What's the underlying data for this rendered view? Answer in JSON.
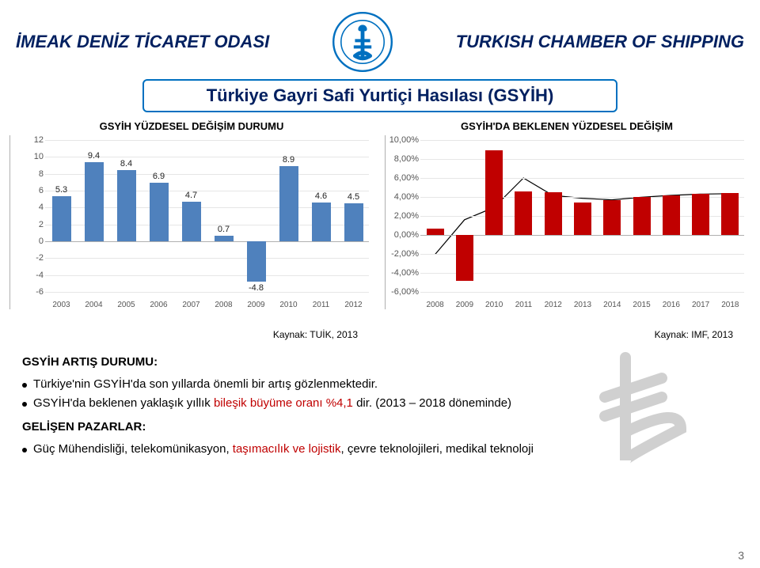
{
  "header": {
    "left": "İMEAK DENİZ TİCARET ODASI",
    "right": "TURKISH CHAMBER OF SHIPPING",
    "logo_ring_text": "DENİZ TİCARET ODASI"
  },
  "title": "Türkiye Gayri Safi Yurtiçi Hasılası (GSYİH)",
  "chart_left": {
    "title": "GSYİH YÜZDESEL DEĞİŞİM DURUMU",
    "type": "bar",
    "categories": [
      "2003",
      "2004",
      "2005",
      "2006",
      "2007",
      "2008",
      "2009",
      "2010",
      "2011",
      "2012"
    ],
    "values": [
      5.3,
      9.4,
      8.4,
      6.9,
      4.7,
      0.7,
      -4.8,
      8.9,
      4.6,
      4.5
    ],
    "labels": [
      "5.3",
      "9.4",
      "8.4",
      "6.9",
      "4.7",
      "0.7",
      "-4.8",
      "8.9",
      "4.6",
      "4.5"
    ],
    "ymin": -6,
    "ymax": 12,
    "ystep": 2,
    "bar_color": "#4f81bd",
    "grid_color": "#e6e6e6",
    "source": "Kaynak: TUİK, 2013"
  },
  "chart_right": {
    "title": "GSYİH'DA BEKLENEN YÜZDESEL DEĞİŞİM",
    "type": "bar",
    "categories": [
      "2008",
      "2009",
      "2010",
      "2011",
      "2012",
      "2013",
      "2014",
      "2015",
      "2016",
      "2017",
      "2018"
    ],
    "values": [
      0.7,
      -4.8,
      8.9,
      4.6,
      4.5,
      3.4,
      3.7,
      4.0,
      4.2,
      4.3,
      4.4
    ],
    "yticks": [
      "-6,00%",
      "-4,00%",
      "-2,00%",
      "0,00%",
      "2,00%",
      "4,00%",
      "6,00%",
      "8,00%",
      "10,00%"
    ],
    "ymin": -6,
    "ymax": 10,
    "ystep": 2,
    "bar_color": "#c00000",
    "grid_color": "#e6e6e6",
    "source": "Kaynak: IMF, 2013",
    "trendline": true
  },
  "body": {
    "section1_heading": "GSYİH ARTIŞ DURUMU:",
    "bullet1": "Türkiye'nin GSYİH'da son yıllarda önemli bir artış gözlenmektedir.",
    "bullet2_pre": "GSYİH'da beklenen yaklaşık yıllık ",
    "bullet2_red": "bileşik büyüme oranı %4,1",
    "bullet2_post": " dir. (2013 – 2018 döneminde)",
    "section2_heading": "GELİŞEN PAZARLAR:",
    "bullet3_pre": "Güç Mühendisliği, telekomünikasyon, ",
    "bullet3_red": "taşımacılık ve lojistik",
    "bullet3_post": ", çevre teknolojileri, medikal teknoloji"
  },
  "pagenum": "3"
}
